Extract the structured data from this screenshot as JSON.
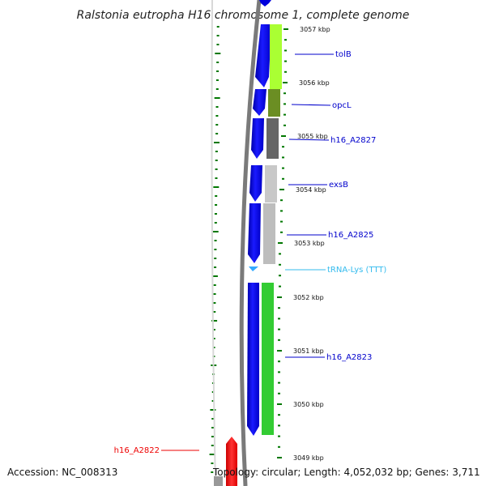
{
  "title": "Ralstonia eutropha H16 chromosome 1, complete genome",
  "footer": {
    "accession": "Accession: NC_008313",
    "topology": "Topology: circular; Length: 4,052,032 bp; Genes: 3,711"
  },
  "kbp_ticks": [
    "3057 kbp",
    "3056 kbp",
    "3055 kbp",
    "3054 kbp",
    "3053 kbp",
    "3052 kbp",
    "3051 kbp",
    "3050 kbp",
    "3049 kbp"
  ],
  "genes": [
    {
      "name": "tolB",
      "color": "#0000cc"
    },
    {
      "name": "opcL",
      "color": "#0000cc"
    },
    {
      "name": "h16_A2827",
      "color": "#0000cc"
    },
    {
      "name": "exsB",
      "color": "#0000cc"
    },
    {
      "name": "h16_A2825",
      "color": "#0000cc"
    },
    {
      "name": "tRNA-Lys (TTT)",
      "color": "#33bbee"
    },
    {
      "name": "h16_A2823",
      "color": "#0000cc"
    },
    {
      "name": "h16_A2822",
      "color": "#ee0000"
    }
  ],
  "colors": {
    "forward_cds": "#0000ee",
    "trna": "#33aaff",
    "reverse_cds": "#ff0000",
    "backbone": "#7a7a7a",
    "ticks": "#007700",
    "cog_blocks": [
      "#aaff33",
      "#6b8e23",
      "#666666",
      "#c8c8c8",
      "#bdbdbd",
      "#33cc33"
    ]
  }
}
